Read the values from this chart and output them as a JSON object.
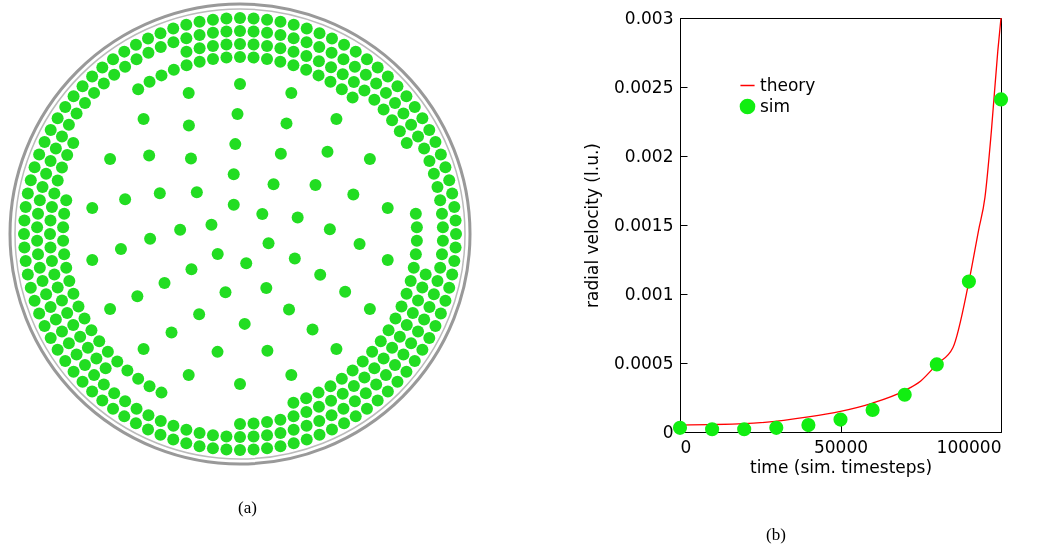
{
  "chart_data": {
    "type": "line",
    "xlabel": "time (sim. timesteps)",
    "ylabel": "radial velocity (l.u.)",
    "annotations": [
      "(a)",
      "(b)"
    ],
    "series": [
      {
        "name": "theory",
        "color": "#ff0000",
        "marker": "none",
        "x": [
          0,
          20000,
          40000,
          50000,
          60000,
          70000,
          75000,
          80000,
          85000,
          90000,
          93000,
          95000,
          97000,
          99000,
          100000
        ],
        "values": [
          5e-05,
          6e-05,
          0.00011,
          0.00015,
          0.00021,
          0.0003,
          0.00037,
          0.00049,
          0.00061,
          0.00109,
          0.00146,
          0.0017,
          0.00218,
          0.00276,
          0.003
        ]
      },
      {
        "name": "sim",
        "type": "scatter",
        "color": "#11ee11",
        "marker": "circle",
        "x": [
          0,
          10000,
          20000,
          30000,
          40000,
          50000,
          60000,
          70000,
          80000,
          90000,
          100000
        ],
        "values": [
          3e-05,
          2e-05,
          2e-05,
          3e-05,
          5e-05,
          9e-05,
          0.00016,
          0.00027,
          0.00049,
          0.00109,
          0.00241
        ]
      }
    ],
    "xlim": [
      0,
      100000
    ],
    "xticks": [
      0,
      50000,
      100000
    ],
    "ylim": [
      0,
      0.003
    ],
    "yticks": [
      0,
      0.0005,
      0.001,
      0.0015,
      0.002,
      0.0025,
      0.003
    ],
    "grid": false,
    "legend": "top left"
  }
}
